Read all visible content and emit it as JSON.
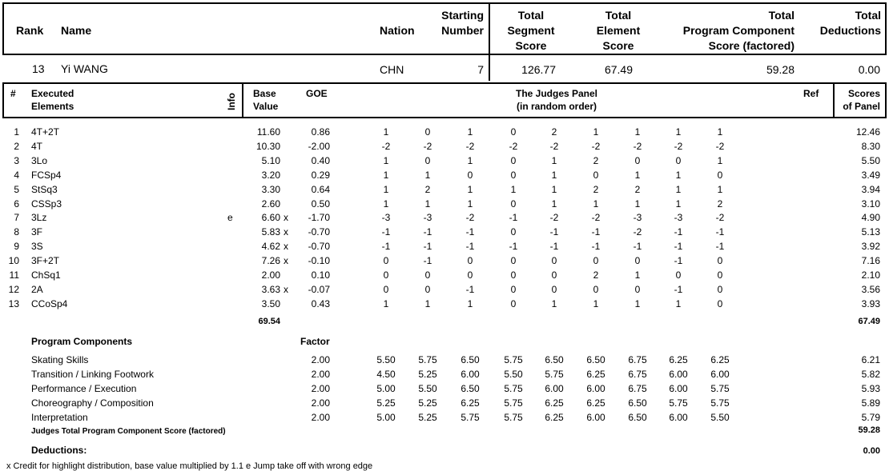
{
  "header": {
    "rank_label": "Rank",
    "name_label": "Name",
    "nation_label": "Nation",
    "starting_number_label": [
      "Starting",
      "Number"
    ],
    "tss_label": [
      "Total",
      "Segment",
      "Score"
    ],
    "tes_label": [
      "Total",
      "Element",
      "Score"
    ],
    "pcs_label": [
      "Total",
      "Program  Component",
      "Score (factored)"
    ],
    "ded_label": [
      "Total",
      "Deductions"
    ]
  },
  "skater": {
    "rank": "13",
    "name": "Yi WANG",
    "nation": "CHN",
    "starting_number": "7",
    "tss": "126.77",
    "tes": "67.49",
    "pcs": "59.28",
    "deductions": "0.00"
  },
  "elements_header": {
    "num": "#",
    "executed": [
      "Executed",
      "Elements"
    ],
    "info": "Info",
    "base": [
      "Base",
      "Value"
    ],
    "goe": "GOE",
    "panel": [
      "The Judges Panel",
      "(in random order)"
    ],
    "ref": "Ref",
    "scores": [
      "Scores",
      "of Panel"
    ]
  },
  "elements": [
    {
      "num": "1",
      "name": "4T+2T",
      "info": "",
      "base": "11.60",
      "x": "",
      "goe": "0.86",
      "judges": [
        "1",
        "0",
        "1",
        "0",
        "2",
        "1",
        "1",
        "1",
        "1"
      ],
      "score": "12.46"
    },
    {
      "num": "2",
      "name": "4T",
      "info": "",
      "base": "10.30",
      "x": "",
      "goe": "-2.00",
      "judges": [
        "-2",
        "-2",
        "-2",
        "-2",
        "-2",
        "-2",
        "-2",
        "-2",
        "-2"
      ],
      "score": "8.30"
    },
    {
      "num": "3",
      "name": "3Lo",
      "info": "",
      "base": "5.10",
      "x": "",
      "goe": "0.40",
      "judges": [
        "1",
        "0",
        "1",
        "0",
        "1",
        "2",
        "0",
        "0",
        "1"
      ],
      "score": "5.50"
    },
    {
      "num": "4",
      "name": "FCSp4",
      "info": "",
      "base": "3.20",
      "x": "",
      "goe": "0.29",
      "judges": [
        "1",
        "1",
        "0",
        "0",
        "1",
        "0",
        "1",
        "1",
        "0"
      ],
      "score": "3.49"
    },
    {
      "num": "5",
      "name": "StSq3",
      "info": "",
      "base": "3.30",
      "x": "",
      "goe": "0.64",
      "judges": [
        "1",
        "2",
        "1",
        "1",
        "1",
        "2",
        "2",
        "1",
        "1"
      ],
      "score": "3.94"
    },
    {
      "num": "6",
      "name": "CSSp3",
      "info": "",
      "base": "2.60",
      "x": "",
      "goe": "0.50",
      "judges": [
        "1",
        "1",
        "1",
        "0",
        "1",
        "1",
        "1",
        "1",
        "2"
      ],
      "score": "3.10"
    },
    {
      "num": "7",
      "name": "3Lz",
      "info": "e",
      "base": "6.60",
      "x": "x",
      "goe": "-1.70",
      "judges": [
        "-3",
        "-3",
        "-2",
        "-1",
        "-2",
        "-2",
        "-3",
        "-3",
        "-2"
      ],
      "score": "4.90"
    },
    {
      "num": "8",
      "name": "3F",
      "info": "",
      "base": "5.83",
      "x": "x",
      "goe": "-0.70",
      "judges": [
        "-1",
        "-1",
        "-1",
        "0",
        "-1",
        "-1",
        "-2",
        "-1",
        "-1"
      ],
      "score": "5.13"
    },
    {
      "num": "9",
      "name": "3S",
      "info": "",
      "base": "4.62",
      "x": "x",
      "goe": "-0.70",
      "judges": [
        "-1",
        "-1",
        "-1",
        "-1",
        "-1",
        "-1",
        "-1",
        "-1",
        "-1"
      ],
      "score": "3.92"
    },
    {
      "num": "10",
      "name": "3F+2T",
      "info": "",
      "base": "7.26",
      "x": "x",
      "goe": "-0.10",
      "judges": [
        "0",
        "-1",
        "0",
        "0",
        "0",
        "0",
        "0",
        "-1",
        "0"
      ],
      "score": "7.16"
    },
    {
      "num": "11",
      "name": "ChSq1",
      "info": "",
      "base": "2.00",
      "x": "",
      "goe": "0.10",
      "judges": [
        "0",
        "0",
        "0",
        "0",
        "0",
        "2",
        "1",
        "0",
        "0"
      ],
      "score": "2.10"
    },
    {
      "num": "12",
      "name": "2A",
      "info": "",
      "base": "3.63",
      "x": "x",
      "goe": "-0.07",
      "judges": [
        "0",
        "0",
        "-1",
        "0",
        "0",
        "0",
        "0",
        "-1",
        "0"
      ],
      "score": "3.56"
    },
    {
      "num": "13",
      "name": "CCoSp4",
      "info": "",
      "base": "3.50",
      "x": "",
      "goe": "0.43",
      "judges": [
        "1",
        "1",
        "1",
        "0",
        "1",
        "1",
        "1",
        "1",
        "0"
      ],
      "score": "3.93"
    }
  ],
  "elements_totals": {
    "base": "69.54",
    "score": "67.49"
  },
  "components_header": {
    "label": "Program Components",
    "factor": "Factor"
  },
  "components": [
    {
      "name": "Skating Skills",
      "factor": "2.00",
      "judges": [
        "5.50",
        "5.75",
        "6.50",
        "5.75",
        "6.50",
        "6.50",
        "6.75",
        "6.25",
        "6.25"
      ],
      "score": "6.21"
    },
    {
      "name": "Transition / Linking Footwork",
      "factor": "2.00",
      "judges": [
        "4.50",
        "5.25",
        "6.00",
        "5.50",
        "5.75",
        "6.25",
        "6.75",
        "6.00",
        "6.00"
      ],
      "score": "5.82"
    },
    {
      "name": "Performance / Execution",
      "factor": "2.00",
      "judges": [
        "5.00",
        "5.50",
        "6.50",
        "5.75",
        "6.00",
        "6.00",
        "6.75",
        "6.00",
        "5.75"
      ],
      "score": "5.93"
    },
    {
      "name": "Choreography / Composition",
      "factor": "2.00",
      "judges": [
        "5.25",
        "5.25",
        "6.25",
        "5.75",
        "6.25",
        "6.25",
        "6.50",
        "5.75",
        "5.75"
      ],
      "score": "5.89"
    },
    {
      "name": "Interpretation",
      "factor": "2.00",
      "judges": [
        "5.00",
        "5.25",
        "5.75",
        "5.75",
        "6.25",
        "6.00",
        "6.50",
        "6.00",
        "5.50"
      ],
      "score": "5.79"
    }
  ],
  "components_total": {
    "label": "Judges Total Program Component Score (factored)",
    "score": "59.28"
  },
  "deductions": {
    "label": "Deductions:",
    "value": "0.00"
  },
  "footnote": "x  Credit for highlight distribution, base value multiplied by 1.1   e  Jump take off with wrong edge"
}
